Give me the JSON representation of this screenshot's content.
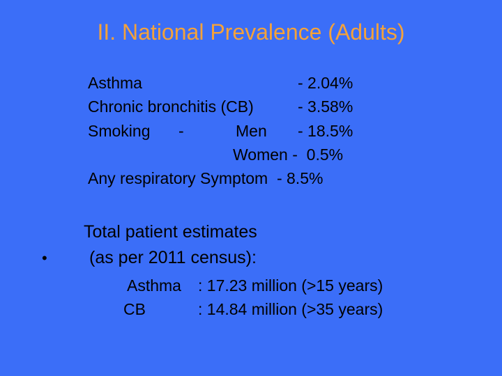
{
  "slide": {
    "title": "II. National Prevalence (Adults)",
    "background_color": "#3b6ef8",
    "title_color": "#f4a23a"
  },
  "prevalence": {
    "asthma_label": "Asthma",
    "asthma_value": "- 2.04%",
    "cb_label": "Chronic bronchitis (CB)",
    "cb_value": "- 3.58%",
    "smoking_label": "Smoking",
    "smoking_dash": "-",
    "men_label": "Men",
    "men_value": "- 18.5%",
    "women_label": "Women -  0.5%",
    "any_label": "Any respiratory Symptom  - 8.5%"
  },
  "estimates": {
    "bullet": "•",
    "heading_line1": "Total patient estimates",
    "heading_line2": "(as per 2011 census):",
    "asthma_label": "Asthma",
    "asthma_value": ": 17.23 million (>15 years)",
    "cb_label": "CB",
    "cb_value": ": 14.84 million (>35 years)"
  }
}
